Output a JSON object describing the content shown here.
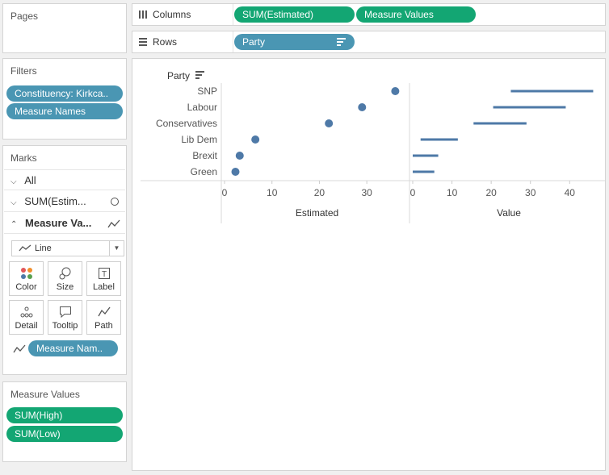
{
  "pages": {
    "title": "Pages"
  },
  "filters": {
    "title": "Filters",
    "items": [
      "Constituency: Kirkca..",
      "Measure Names"
    ]
  },
  "marks": {
    "title": "Marks",
    "rows": [
      "All",
      "SUM(Estim...",
      "Measure Va..."
    ],
    "mark_type": "Line",
    "buttons": [
      "Color",
      "Size",
      "Label",
      "Detail",
      "Tooltip",
      "Path"
    ],
    "path_pill": "Measure Nam.."
  },
  "measure_values": {
    "title": "Measure Values",
    "items": [
      "SUM(High)",
      "SUM(Low)"
    ]
  },
  "columns": {
    "label": "Columns",
    "pills": [
      "SUM(Estimated)",
      "Measure Values"
    ]
  },
  "rows": {
    "label": "Rows",
    "pills": [
      "Party"
    ]
  },
  "colors": {
    "blue_pill": "#4a96b3",
    "green_pill": "#13a673",
    "mark": "#4e79a7"
  },
  "chart_data": {
    "type": "scatter",
    "row_header": "Party",
    "categories": [
      "SNP",
      "Labour",
      "Conservatives",
      "Lib Dem",
      "Brexit",
      "Green"
    ],
    "panels": [
      {
        "xlabel": "Estimated",
        "xticks": [
          0,
          10,
          20,
          30
        ],
        "xlim": [
          0,
          39
        ],
        "type": "scatter",
        "values": [
          36,
          29,
          22,
          6.5,
          3.2,
          2.3
        ]
      },
      {
        "xlabel": "Value",
        "xticks": [
          0,
          10,
          20,
          30,
          40
        ],
        "xlim": [
          0,
          49
        ],
        "type": "range",
        "low": [
          25,
          20.5,
          15.5,
          2,
          0,
          0
        ],
        "high": [
          46,
          39,
          29,
          11.5,
          6.5,
          5.5
        ]
      }
    ]
  }
}
